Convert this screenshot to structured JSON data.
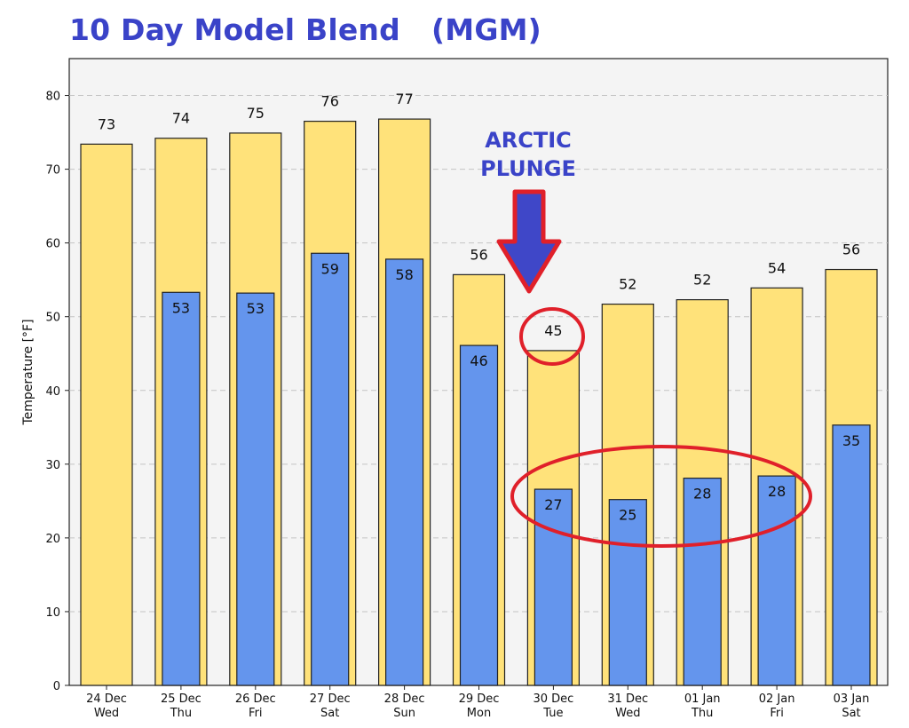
{
  "title": "10 Day Model Blend   (MGM)",
  "colors": {
    "high_bar": "#ffe27a",
    "low_bar": "#6495ed",
    "plot_bg": "#f4f4f4",
    "annotation_text": "#3a43c8",
    "arrow_fill": "#3f47c8",
    "circle": "#e0202a"
  },
  "chart_data": {
    "type": "bar",
    "ylabel": "Temperature [°F]",
    "ylim": [
      0,
      85
    ],
    "yticks": [
      0,
      10,
      20,
      30,
      40,
      50,
      60,
      70,
      80
    ],
    "grid": true,
    "categories": [
      {
        "date": "24 Dec",
        "day": "Wed"
      },
      {
        "date": "25 Dec",
        "day": "Thu"
      },
      {
        "date": "26 Dec",
        "day": "Fri"
      },
      {
        "date": "27 Dec",
        "day": "Sat"
      },
      {
        "date": "28 Dec",
        "day": "Sun"
      },
      {
        "date": "29 Dec",
        "day": "Mon"
      },
      {
        "date": "30 Dec",
        "day": "Tue"
      },
      {
        "date": "31 Dec",
        "day": "Wed"
      },
      {
        "date": "01 Jan",
        "day": "Thu"
      },
      {
        "date": "02 Jan",
        "day": "Fri"
      },
      {
        "date": "03 Jan",
        "day": "Sat"
      }
    ],
    "series": [
      {
        "values": [
          73.4,
          74.2,
          74.9,
          76.5,
          76.8,
          55.7,
          45.4,
          51.7,
          52.3,
          53.9,
          56.4
        ],
        "labels": [
          "73",
          "74",
          "75",
          "76",
          "77",
          "56",
          "45",
          "52",
          "52",
          "54",
          "56"
        ]
      },
      {
        "values": [
          null,
          53.3,
          53.2,
          58.6,
          57.8,
          46.1,
          26.6,
          25.2,
          28.1,
          28.4,
          35.3
        ],
        "labels": [
          "",
          "53",
          "53",
          "59",
          "58",
          "46",
          "27",
          "25",
          "28",
          "28",
          "35"
        ]
      }
    ],
    "annotations": {
      "text_lines": [
        "ARCTIC",
        "PLUNGE"
      ],
      "arrow": "down-arrow at 30 Dec",
      "circles": [
        "30 Dec high 45",
        "30 Dec to 02 Jan lows"
      ]
    }
  }
}
